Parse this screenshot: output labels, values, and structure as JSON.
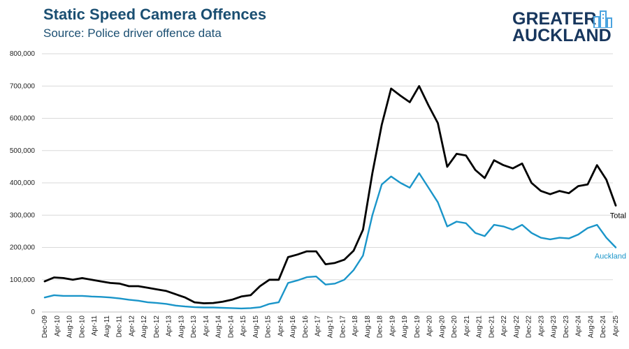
{
  "header": {
    "title": "Static Speed Camera Offences",
    "subtitle": "Source: Police driver offence data"
  },
  "logo": {
    "line1": "GREATER",
    "line2": "AUCKLAND",
    "icon": "city-buildings-icon"
  },
  "colors": {
    "total": "#000000",
    "auckland": "#1a95c9",
    "grid": "#d9d9d9",
    "title": "#1b4f72",
    "logo": "#17365d"
  },
  "chart_data": {
    "type": "line",
    "title": "Static Speed Camera Offences",
    "subtitle": "Source: Police driver offence data",
    "xlabel": "",
    "ylabel": "",
    "ylim": [
      0,
      800000
    ],
    "y_ticks": [
      "0",
      "100,000",
      "200,000",
      "300,000",
      "400,000",
      "500,000",
      "600,000",
      "700,000",
      "800,000"
    ],
    "y_tick_values": [
      0,
      100000,
      200000,
      300000,
      400000,
      500000,
      600000,
      700000,
      800000
    ],
    "grid": true,
    "x_start": "Dec-09",
    "x_step_months": 4,
    "x_ticks": [
      "Dec-09",
      "Apr-10",
      "Aug-10",
      "Dec-10",
      "Apr-11",
      "Aug-11",
      "Dec-11",
      "Apr-12",
      "Aug-12",
      "Dec-12",
      "Apr-13",
      "Aug-13",
      "Dec-13",
      "Apr-14",
      "Aug-14",
      "Dec-14",
      "Apr-15",
      "Aug-15",
      "Dec-15",
      "Apr-16",
      "Aug-16",
      "Dec-16",
      "Apr-17",
      "Aug-17",
      "Dec-17",
      "Apr-18",
      "Aug-18",
      "Dec-18",
      "Apr-19",
      "Aug-19",
      "Dec-19",
      "Apr-20",
      "Aug-20",
      "Dec-20",
      "Apr-21",
      "Aug-21",
      "Dec-21",
      "Apr-22",
      "Aug-22",
      "Dec-22",
      "Apr-23",
      "Aug-23",
      "Dec-23",
      "Apr-24",
      "Aug-24",
      "Dec-24",
      "Apr-25"
    ],
    "series": [
      {
        "name": "Total",
        "values": [
          95000,
          107000,
          105000,
          100000,
          105000,
          100000,
          95000,
          90000,
          88000,
          80000,
          80000,
          75000,
          70000,
          65000,
          55000,
          45000,
          30000,
          27000,
          28000,
          32000,
          38000,
          48000,
          52000,
          80000,
          100000,
          100000,
          170000,
          178000,
          188000,
          188000,
          148000,
          152000,
          162000,
          190000,
          255000,
          430000,
          580000,
          692000,
          670000,
          650000,
          700000,
          640000,
          585000,
          450000,
          490000,
          485000,
          440000,
          415000,
          470000,
          455000,
          445000,
          460000,
          400000,
          375000,
          365000,
          375000,
          368000,
          390000,
          395000,
          455000,
          410000,
          330000
        ]
      },
      {
        "name": "Auckland",
        "values": [
          45000,
          52000,
          50000,
          50000,
          50000,
          48000,
          47000,
          45000,
          42000,
          38000,
          35000,
          30000,
          28000,
          25000,
          20000,
          17000,
          15000,
          14000,
          14000,
          13000,
          12000,
          11000,
          12000,
          15000,
          25000,
          30000,
          90000,
          98000,
          108000,
          110000,
          85000,
          88000,
          100000,
          130000,
          175000,
          300000,
          395000,
          420000,
          400000,
          385000,
          430000,
          385000,
          340000,
          265000,
          280000,
          275000,
          245000,
          235000,
          270000,
          265000,
          255000,
          270000,
          245000,
          230000,
          225000,
          230000,
          228000,
          240000,
          260000,
          270000,
          230000,
          200000
        ]
      }
    ]
  }
}
